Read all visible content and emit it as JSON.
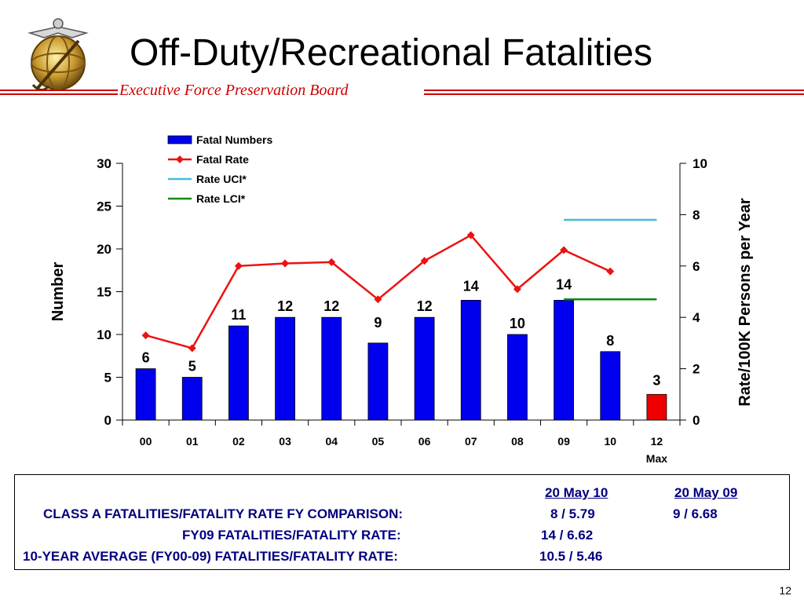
{
  "title": "Off-Duty/Recreational Fatalities",
  "subtitle": "Executive Force Preservation Board",
  "page_number": "12",
  "colors": {
    "bar": "#0000ee",
    "bar_highlight": "#ee0000",
    "rate_line": "#ee1111",
    "uci": "#44bbdd",
    "lci": "#118811",
    "header_rule": "#cc0000",
    "table_text": "#000080"
  },
  "chart_data": {
    "type": "bar",
    "categories": [
      "00",
      "01",
      "02",
      "03",
      "04",
      "05",
      "06",
      "07",
      "08",
      "09",
      "10",
      "12"
    ],
    "category_sublabels": [
      "",
      "",
      "",
      "",
      "",
      "",
      "",
      "",
      "",
      "",
      "",
      "Max"
    ],
    "y_left": {
      "label": "Number",
      "range": [
        0,
        30
      ],
      "ticks": [
        0,
        5,
        10,
        15,
        20,
        25,
        30
      ]
    },
    "y_right": {
      "label": "Rate/100K Persons per Year",
      "range": [
        0,
        10
      ],
      "ticks": [
        0,
        2,
        4,
        6,
        8,
        10
      ]
    },
    "series": [
      {
        "name": "Fatal Numbers",
        "type": "bar",
        "axis": "left",
        "values": [
          6,
          5,
          11,
          12,
          12,
          9,
          12,
          14,
          10,
          14,
          8,
          3
        ],
        "labels": [
          "6",
          "5",
          "11",
          "12",
          "12",
          "9",
          "12",
          "14",
          "10",
          "14",
          "8",
          "3"
        ],
        "highlight_index": 11
      },
      {
        "name": "Fatal Rate",
        "type": "line",
        "axis": "right",
        "values": [
          3.3,
          2.8,
          6.0,
          6.1,
          6.15,
          4.7,
          6.2,
          7.2,
          5.1,
          6.62,
          5.79,
          null
        ]
      },
      {
        "name": "Rate UCI*",
        "type": "hline",
        "axis": "right",
        "value": 7.8,
        "x_span": [
          "09",
          "12"
        ]
      },
      {
        "name": "Rate LCI*",
        "type": "hline",
        "axis": "right",
        "value": 4.7,
        "x_span": [
          "09",
          "12"
        ]
      }
    ],
    "legend_position": "top-center",
    "grid": false
  },
  "comparison": {
    "col1_header": "20 May 10",
    "col2_header": "20 May 09",
    "rows": [
      {
        "label": "CLASS A FATALITIES/FATALITY RATE FY COMPARISON:",
        "v1": "8 / 5.79",
        "v2": "9 / 6.68"
      },
      {
        "label": "FY09 FATALITIES/FATALITY RATE:",
        "v1": "14 / 6.62"
      },
      {
        "label": "10-YEAR AVERAGE (FY00-09) FATALITIES/FATALITY RATE:",
        "v1": "10.5 / 5.46"
      }
    ]
  }
}
